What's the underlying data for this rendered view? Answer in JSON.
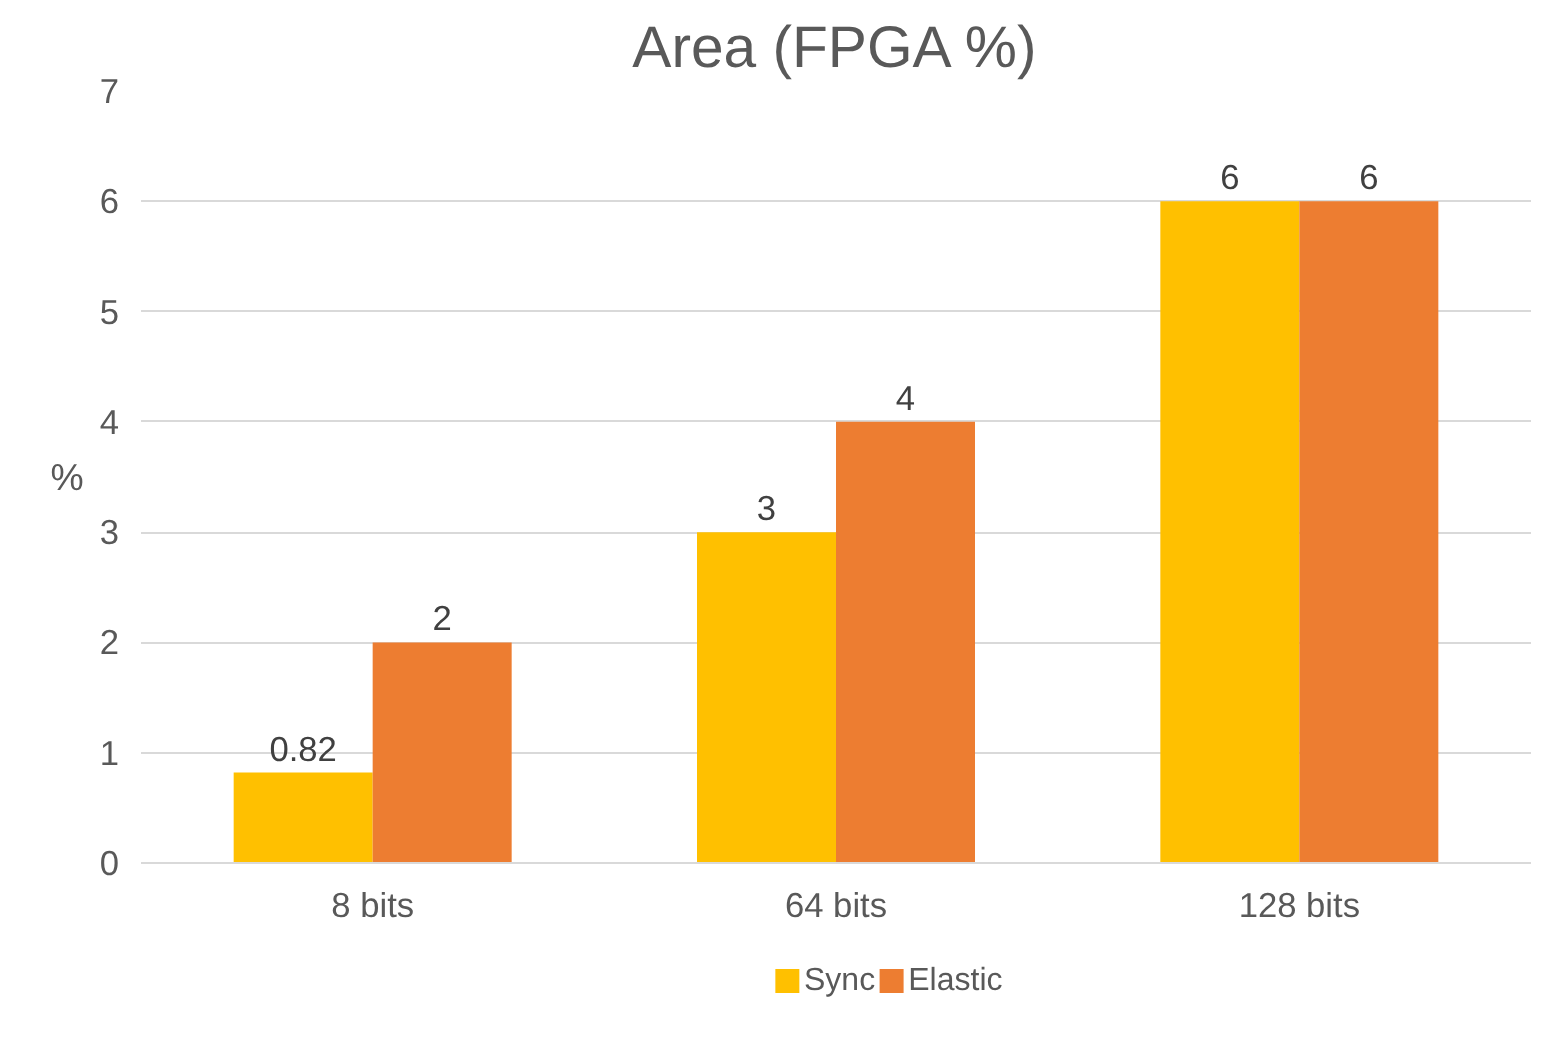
{
  "chart_data": {
    "type": "bar",
    "title": "Area (FPGA %)",
    "ylabel": "%",
    "categories": [
      "8 bits",
      "64 bits",
      "128 bits"
    ],
    "series": [
      {
        "name": "Sync",
        "color": "#ffc000",
        "values": [
          0.82,
          3,
          6
        ]
      },
      {
        "name": "Elastic",
        "color": "#ed7d31",
        "values": [
          2,
          4,
          6
        ]
      }
    ],
    "ylim": [
      0,
      7
    ],
    "yticks": [
      0,
      1,
      2,
      3,
      4,
      5,
      6,
      7
    ],
    "grid": "y",
    "legend": "bottom",
    "data_labels": true
  }
}
